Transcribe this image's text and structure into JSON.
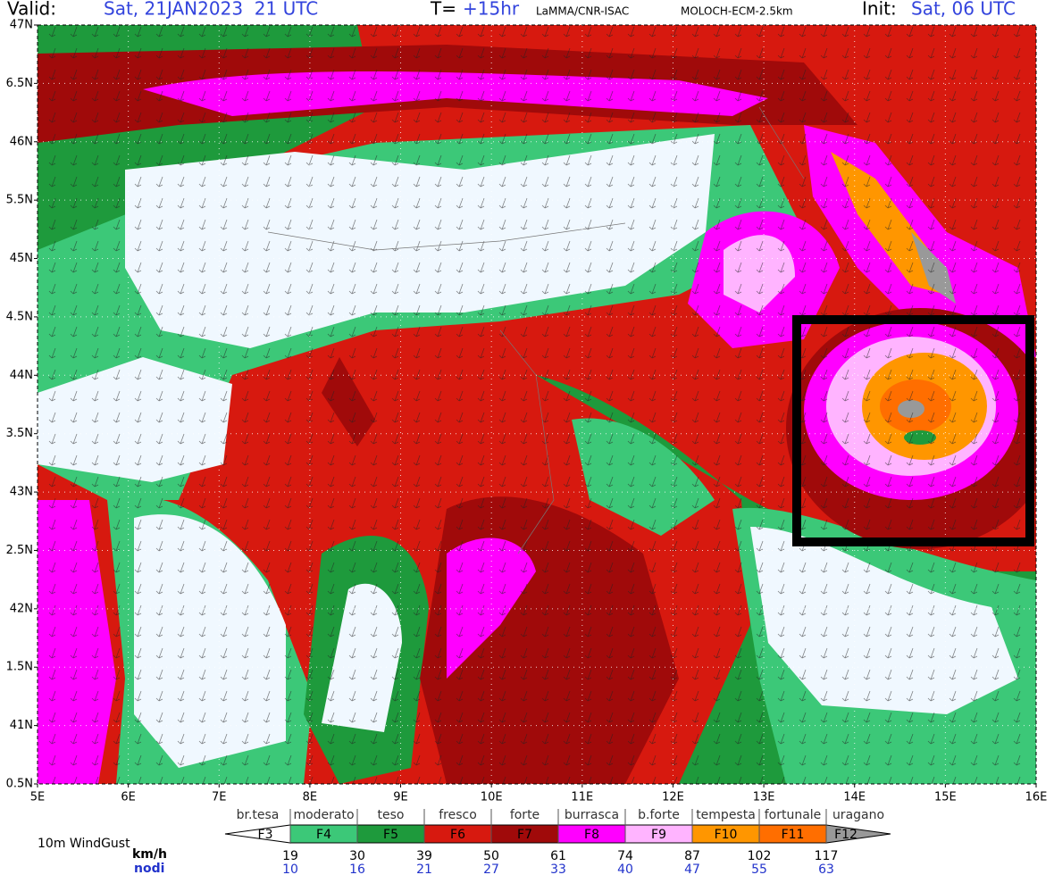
{
  "header": {
    "valid_label": "Valid:",
    "valid_time": "Sat, 21JAN2023  21 UTC",
    "lead_label": "T=",
    "lead_time": "+15hr",
    "institution": "LaMMA/CNR-ISAC",
    "model": "MOLOCH-ECM-2.5km",
    "init_label": "Init:",
    "init_time": "Sat, 06 UTC"
  },
  "map": {
    "lat_range": [
      40.5,
      47
    ],
    "lon_range": [
      5,
      16
    ],
    "lat_ticks": [
      {
        "value": 47,
        "label": "47N"
      },
      {
        "value": 46.5,
        "label": "6.5N"
      },
      {
        "value": 46,
        "label": "46N"
      },
      {
        "value": 45.5,
        "label": "5.5N"
      },
      {
        "value": 45,
        "label": "45N"
      },
      {
        "value": 44.5,
        "label": "4.5N"
      },
      {
        "value": 44,
        "label": "44N"
      },
      {
        "value": 43.5,
        "label": "3.5N"
      },
      {
        "value": 43,
        "label": "43N"
      },
      {
        "value": 42.5,
        "label": "2.5N"
      },
      {
        "value": 42,
        "label": "42N"
      },
      {
        "value": 41.5,
        "label": "1.5N"
      },
      {
        "value": 41,
        "label": "41N"
      },
      {
        "value": 40.5,
        "label": "0.5N"
      }
    ],
    "lon_ticks": [
      {
        "value": 5,
        "label": "5E"
      },
      {
        "value": 6,
        "label": "6E"
      },
      {
        "value": 7,
        "label": "7E"
      },
      {
        "value": 8,
        "label": "8E"
      },
      {
        "value": 9,
        "label": "9E"
      },
      {
        "value": 10,
        "label": "10E"
      },
      {
        "value": 11,
        "label": "11E"
      },
      {
        "value": 12,
        "label": "12E"
      },
      {
        "value": 13,
        "label": "13E"
      },
      {
        "value": 14,
        "label": "14E"
      },
      {
        "value": 15,
        "label": "15E"
      },
      {
        "value": 16,
        "label": "16E"
      }
    ]
  },
  "legend": {
    "title": "10m WindGust",
    "unit_kmh": "km/h",
    "unit_knots": "nodi",
    "classes": [
      {
        "label": "F3",
        "name": "br.tesa",
        "color": "#ffffff"
      },
      {
        "label": "F4",
        "name": "moderato",
        "color": "#3cc878"
      },
      {
        "label": "F5",
        "name": "teso",
        "color": "#1e9a3c"
      },
      {
        "label": "F6",
        "name": "fresco",
        "color": "#d7190f"
      },
      {
        "label": "F7",
        "name": "forte",
        "color": "#a00a0a"
      },
      {
        "label": "F8",
        "name": "burrasca",
        "color": "#ff00ff"
      },
      {
        "label": "F9",
        "name": "b.forte",
        "color": "#ffb4ff"
      },
      {
        "label": "F10",
        "name": "tempesta",
        "color": "#ff9600"
      },
      {
        "label": "F11",
        "name": "fortunale",
        "color": "#ff6e00"
      },
      {
        "label": "F12",
        "name": "uragano",
        "color": "#999999"
      }
    ],
    "kmh": [
      19,
      30,
      39,
      50,
      61,
      74,
      87,
      102,
      117
    ],
    "knots": [
      10,
      16,
      21,
      27,
      33,
      40,
      47,
      55,
      63
    ]
  }
}
